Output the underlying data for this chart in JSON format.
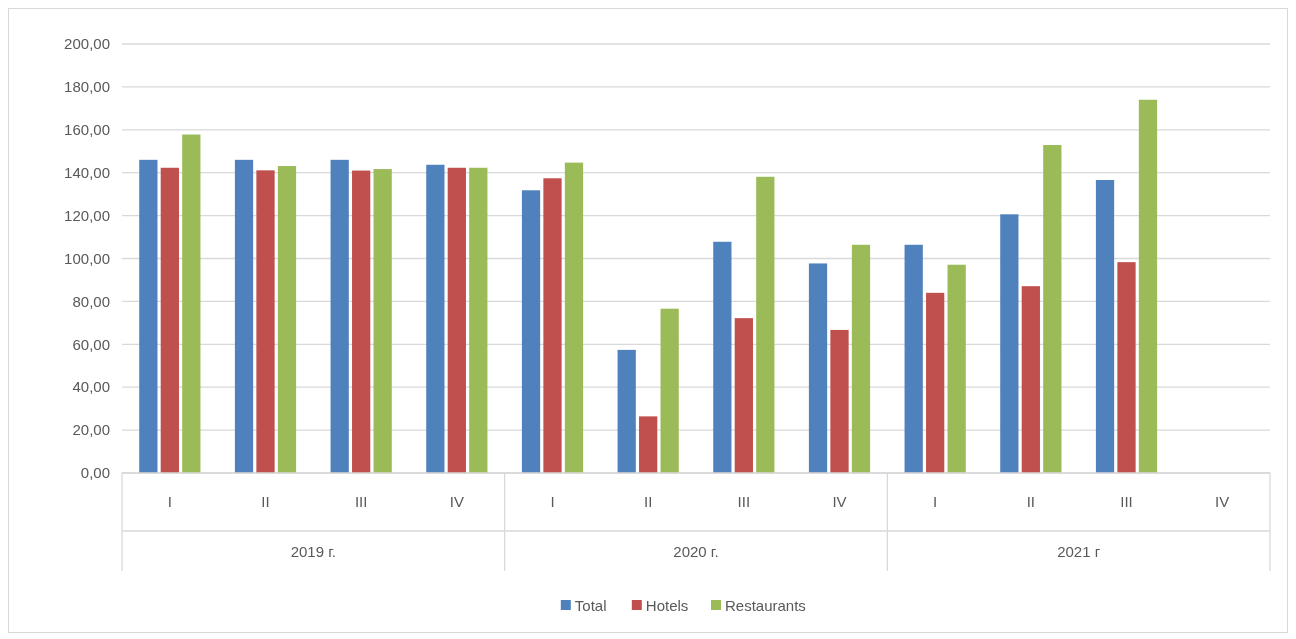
{
  "chart_data": {
    "type": "bar",
    "categories": [
      "I",
      "II",
      "III",
      "IV",
      "I",
      "II",
      "III",
      "IV",
      "I",
      "II",
      "III",
      "IV"
    ],
    "annotations": [
      "2019 г.",
      "2020 г.",
      "2021 г"
    ],
    "series": [
      {
        "name": "Total",
        "color": "#4f81bd",
        "values": [
          146.0,
          146.0,
          146.0,
          143.7,
          131.8,
          57.4,
          107.8,
          97.7,
          106.4,
          120.6,
          136.6,
          null
        ]
      },
      {
        "name": "Hotels",
        "color": "#c0504d",
        "values": [
          142.3,
          141.1,
          141.0,
          142.3,
          137.4,
          26.4,
          72.2,
          66.7,
          84.0,
          87.1,
          98.3,
          null
        ]
      },
      {
        "name": "Restaurants",
        "color": "#9bbb59",
        "values": [
          157.8,
          143.1,
          141.7,
          142.3,
          144.7,
          76.6,
          138.1,
          106.4,
          97.1,
          152.9,
          174.0,
          null
        ]
      }
    ],
    "ylim": [
      0,
      200
    ],
    "yticks": [
      {
        "value": 0,
        "label": "0,00"
      },
      {
        "value": 20,
        "label": "20,00"
      },
      {
        "value": 40,
        "label": "40,00"
      },
      {
        "value": 60,
        "label": "60,00"
      },
      {
        "value": 80,
        "label": "80,00"
      },
      {
        "value": 100,
        "label": "100,00"
      },
      {
        "value": 120,
        "label": "120,00"
      },
      {
        "value": 140,
        "label": "140,00"
      },
      {
        "value": 160,
        "label": "160,00"
      },
      {
        "value": 180,
        "label": "180,00"
      },
      {
        "value": 200,
        "label": "200,00"
      }
    ],
    "grid": "y",
    "legend": "bottom"
  }
}
